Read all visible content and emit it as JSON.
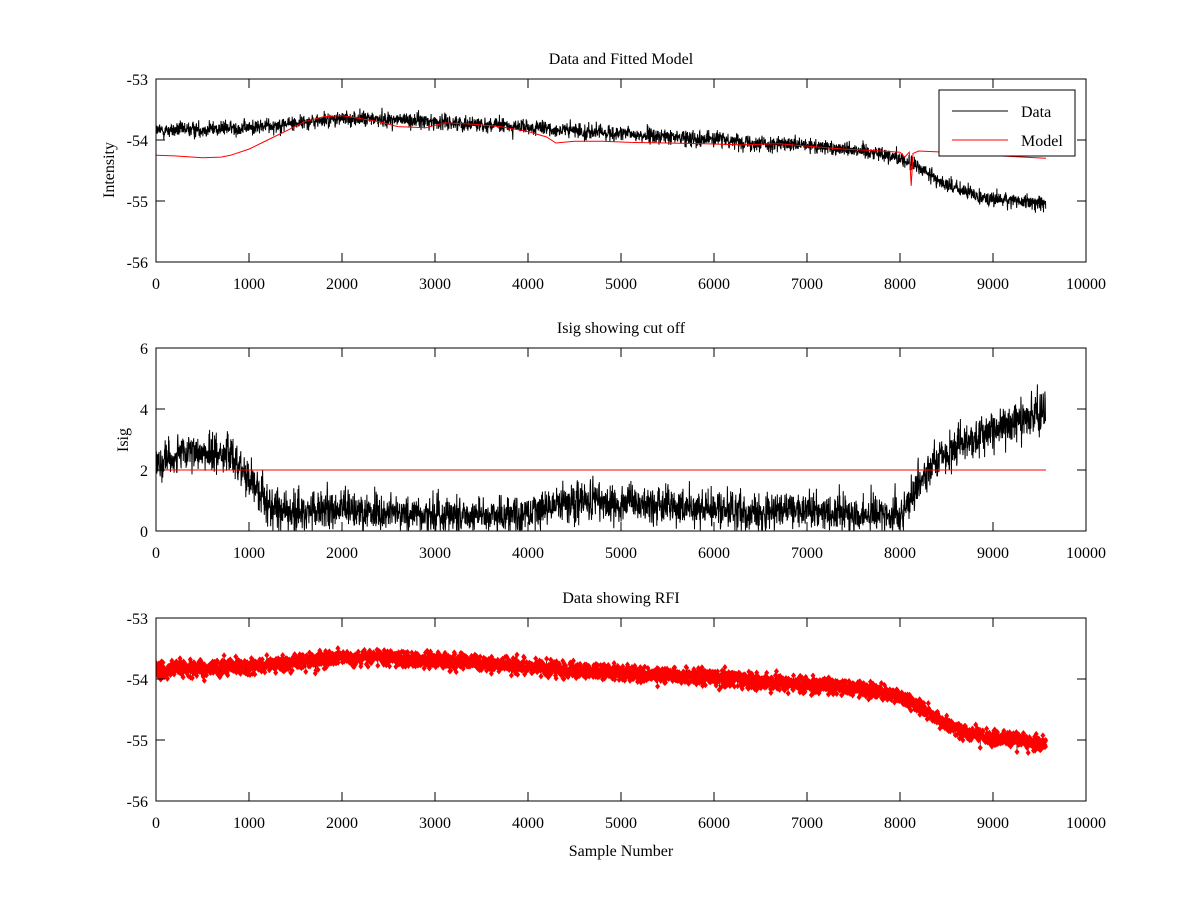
{
  "figure": {
    "background": "#ffffff",
    "line_color": "#000000",
    "accent_color": "#ff0000"
  },
  "chart_data": [
    {
      "type": "line",
      "title": "Data and Fitted Model",
      "xlabel": "",
      "ylabel": "Intensity",
      "xlim": [
        0,
        10000
      ],
      "ylim": [
        -56,
        -53
      ],
      "xticks": [
        0,
        1000,
        2000,
        3000,
        4000,
        5000,
        6000,
        7000,
        8000,
        9000,
        10000
      ],
      "yticks": [
        -56,
        -55,
        -54,
        -53
      ],
      "grid": false,
      "legend": {
        "position": "top-right",
        "entries": [
          "Data",
          "Model"
        ]
      },
      "n_samples": 9570,
      "series": [
        {
          "name": "Data",
          "color": "#000000",
          "style": "noisy-line",
          "noise_std": 0.09,
          "trend_x": [
            0,
            500,
            1000,
            1500,
            2000,
            2500,
            3000,
            3500,
            4000,
            4500,
            5000,
            5500,
            6000,
            6500,
            7000,
            7500,
            7800,
            8000,
            8200,
            8400,
            8600,
            8800,
            9000,
            9300,
            9570
          ],
          "trend_y": [
            -53.85,
            -53.82,
            -53.8,
            -53.72,
            -53.65,
            -53.66,
            -53.7,
            -53.74,
            -53.8,
            -53.85,
            -53.9,
            -53.95,
            -53.98,
            -54.05,
            -54.1,
            -54.15,
            -54.22,
            -54.3,
            -54.45,
            -54.65,
            -54.8,
            -54.9,
            -54.97,
            -55.0,
            -55.05
          ]
        },
        {
          "name": "Model",
          "color": "#ff0000",
          "style": "line",
          "x": [
            0,
            200,
            400,
            500,
            700,
            800,
            1000,
            1200,
            1400,
            1600,
            1800,
            2000,
            2200,
            2400,
            2600,
            2900,
            3100,
            3400,
            3700,
            4000,
            4200,
            4300,
            4500,
            4800,
            5100,
            5500,
            5900,
            6300,
            6700,
            7000,
            7400,
            7800,
            8000,
            8050,
            8100,
            8120,
            8140,
            8200,
            8500,
            8800,
            9200,
            9570
          ],
          "y": [
            -54.25,
            -54.26,
            -54.28,
            -54.29,
            -54.28,
            -54.25,
            -54.15,
            -54.0,
            -53.85,
            -53.7,
            -53.62,
            -53.6,
            -53.65,
            -53.7,
            -53.78,
            -53.8,
            -53.72,
            -53.74,
            -53.78,
            -53.86,
            -53.95,
            -54.05,
            -54.02,
            -54.02,
            -54.04,
            -54.05,
            -54.06,
            -54.08,
            -54.06,
            -54.1,
            -54.15,
            -54.18,
            -54.2,
            -54.28,
            -54.2,
            -54.75,
            -54.22,
            -54.18,
            -54.2,
            -54.24,
            -54.27,
            -54.3
          ]
        }
      ]
    },
    {
      "type": "line",
      "title": "Isig showing cut off",
      "xlabel": "",
      "ylabel": "Isig",
      "xlim": [
        0,
        10000
      ],
      "ylim": [
        0,
        6
      ],
      "xticks": [
        0,
        1000,
        2000,
        3000,
        4000,
        5000,
        6000,
        7000,
        8000,
        9000,
        10000
      ],
      "yticks": [
        0,
        2,
        4,
        6
      ],
      "grid": false,
      "n_samples": 9570,
      "series": [
        {
          "name": "Isig",
          "color": "#000000",
          "style": "noisy-line",
          "noise_std": 0.45,
          "trend_x": [
            0,
            300,
            600,
            800,
            1000,
            1200,
            1400,
            2000,
            2500,
            3000,
            3500,
            4000,
            4300,
            4500,
            5000,
            5500,
            6000,
            6500,
            7000,
            7500,
            8000,
            8100,
            8300,
            8600,
            9000,
            9300,
            9570
          ],
          "trend_y": [
            2.3,
            2.5,
            2.6,
            2.5,
            1.8,
            0.9,
            0.6,
            0.7,
            0.6,
            0.55,
            0.55,
            0.55,
            0.9,
            1.0,
            0.9,
            0.8,
            0.7,
            0.6,
            0.7,
            0.6,
            0.5,
            1.0,
            2.0,
            2.8,
            3.3,
            3.7,
            3.9
          ]
        },
        {
          "name": "Cut off",
          "color": "#ff0000",
          "style": "line",
          "x": [
            0,
            9570
          ],
          "y": [
            2,
            2
          ]
        }
      ]
    },
    {
      "type": "scatter",
      "title": "Data showing RFI",
      "xlabel": "Sample Number",
      "ylabel": "",
      "xlim": [
        0,
        10000
      ],
      "ylim": [
        -56,
        -53
      ],
      "xticks": [
        0,
        1000,
        2000,
        3000,
        4000,
        5000,
        6000,
        7000,
        8000,
        9000,
        10000
      ],
      "yticks": [
        -56,
        -55,
        -54,
        -53
      ],
      "grid": false,
      "n_samples": 9570,
      "series": [
        {
          "name": "RFI",
          "color": "#ff0000",
          "style": "noisy-markers",
          "noise_std": 0.09,
          "trend_x": [
            0,
            500,
            1000,
            1500,
            2000,
            2500,
            3000,
            3500,
            4000,
            4500,
            5000,
            5500,
            6000,
            6500,
            7000,
            7500,
            7800,
            8000,
            8200,
            8400,
            8600,
            8800,
            9000,
            9300,
            9570
          ],
          "trend_y": [
            -53.85,
            -53.82,
            -53.8,
            -53.72,
            -53.65,
            -53.66,
            -53.7,
            -53.74,
            -53.8,
            -53.85,
            -53.9,
            -53.95,
            -53.98,
            -54.05,
            -54.1,
            -54.15,
            -54.22,
            -54.3,
            -54.45,
            -54.65,
            -54.8,
            -54.9,
            -54.97,
            -55.0,
            -55.05
          ]
        }
      ]
    }
  ]
}
